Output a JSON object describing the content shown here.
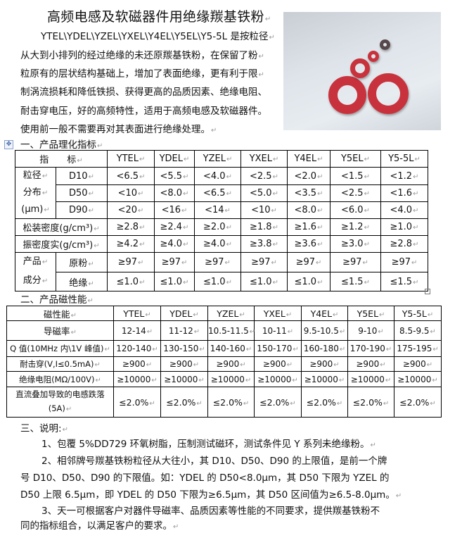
{
  "title": "高频电感及软磁器件用绝缘羰基铁粉",
  "intro_lines": [
    "YTEL\\YDEL\\YZEL\\YXEL\\Y4EL\\Y5EL\\Y5-5L 是按粒径",
    "从大到小排列的经过绝缘的未还原羰基铁粉，在保留了粉",
    "粒原有的层状结构基础上，增加了表面绝缘，更有利于限",
    "制涡流损耗和降低铁损、获得更高的品质因素、绝缘电阻、",
    "耐击穿电压，好的高频特性，适用于高频电感及软磁器件。",
    "使用前一般不需要再对其表面进行绝缘处理。"
  ],
  "section1": {
    "heading": "一、产品理化指标",
    "header": [
      "指　　标",
      "YTEL",
      "YDEL",
      "YZEL",
      "YXEL",
      "Y4EL",
      "Y5EL",
      "Y5-5L"
    ],
    "psd_group": [
      "粒径",
      "分布",
      "(μm)"
    ],
    "psd_rows": [
      {
        "label": "D10",
        "values": [
          "<6.5",
          "<5.5",
          "<4.0",
          "<2.5",
          "<2.0",
          "<1.5",
          "<1.2"
        ]
      },
      {
        "label": "D50",
        "values": [
          "<10",
          "<8.0",
          "<6.5",
          "<5.0",
          "<3.5",
          "<2.5",
          "<1.6"
        ]
      },
      {
        "label": "D90",
        "values": [
          "<20",
          "<16",
          "<14",
          "<10",
          "<8.0",
          "<6.0",
          "<4.0"
        ]
      }
    ],
    "bulk_density": {
      "label": "松装密度(g/cm³)",
      "values": [
        "≥2.8",
        "≥2.4",
        "≥2.0",
        "≥1.8",
        "≥1.6",
        "≥1.2",
        "≥1.0"
      ]
    },
    "tap_density": {
      "label": "振密度实(g/cm³)",
      "values": [
        "≥4.2",
        "≥4.0",
        "≥4.0",
        "≥3.8",
        "≥3.6",
        "≥3.0",
        "≥2.8"
      ]
    },
    "comp_group": [
      "产品",
      "成分"
    ],
    "comp_rows": [
      {
        "label": "原粉",
        "values": [
          "≥97",
          "≥97",
          "≥97",
          "≥97",
          "≥97",
          "≥97",
          "≥97"
        ]
      },
      {
        "label": "绝缘",
        "values": [
          "≤1.0",
          "≤1.0",
          "≤1.0",
          "≤1.0",
          "≤1.0",
          "≤1.5",
          "≤1.5"
        ]
      }
    ]
  },
  "section2": {
    "heading": "二、产品磁性能",
    "header": [
      "磁性能",
      "YTEL",
      "YDEL",
      "YZEL",
      "YXEL",
      "Y4EL",
      "Y5EL",
      "Y5-5L"
    ],
    "rows": [
      {
        "label": "导磁率",
        "values": [
          "12-14",
          "11-12",
          "10.5-11.5",
          "10-11",
          "9.5-10.5",
          "9-10",
          "8.5-9.5"
        ]
      },
      {
        "label": "Q 值(10MHz 内\\1V 峰值)",
        "values": [
          "120-140",
          "130-150",
          "140-160",
          "150-170",
          "160-180",
          "170-190",
          "175-195"
        ]
      },
      {
        "label": "耐击穿(V,I≤0.5mA)",
        "values": [
          "≥900",
          "≥900",
          "≥900",
          "≥900",
          "≥900",
          "≥900",
          "≥900"
        ]
      },
      {
        "label": "绝缘电阻(MΩ/100V)",
        "values": [
          "≥10000",
          "≥10000",
          "≥10000",
          "≥10000",
          "≥10000",
          "≥10000",
          "≥10000"
        ]
      },
      {
        "label": "直流叠加导致的电感跌落",
        "label2": "(5A)",
        "values": [
          "≤2.0%",
          "≤2.0%",
          "≤2.0%",
          "≤2.0%",
          "≤2.0%",
          "≤2.0%",
          "≤2.0%"
        ]
      }
    ]
  },
  "section3": {
    "heading": "三、说明:",
    "lines": [
      "1、包覆 5%DD729 环氧树脂，压制测试磁环，测试条件见 Y 系列未绝缘粉。",
      "2、相邻牌号羰基铁粉粒径从大往小，其 D10、D50、D90 的上限值，是前一个牌",
      "号 D10、D50、D90 的下限值。如：YDEL 的 D50<8.0μm，其 D50 下限为 YZEL 的",
      "D50 上限 6.5μm，即 YDEL 的 D50 下限为≥6.5μm，其 D50 区间值为≥6.5-8.0μm。",
      "3、天一可根据客户对器件导磁率、品质因素等性能的不同要求，提供羰基铁粉不",
      "同的指标组合，以满足客户的要求。"
    ]
  },
  "photo": {
    "subject": "red-toroid-cores",
    "ring_color": "#c8323c",
    "small_ring_color": "#55474a"
  }
}
